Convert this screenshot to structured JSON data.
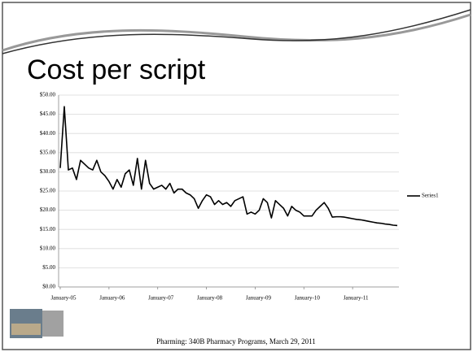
{
  "chart_data": {
    "type": "line",
    "title": "Cost per script",
    "categories": [
      "January-05",
      null,
      null,
      null,
      null,
      null,
      null,
      null,
      null,
      null,
      null,
      null,
      "January-06",
      null,
      null,
      null,
      null,
      null,
      null,
      null,
      null,
      null,
      null,
      null,
      "January-07",
      null,
      null,
      null,
      null,
      null,
      null,
      null,
      null,
      null,
      null,
      null,
      "January-08",
      null,
      null,
      null,
      null,
      null,
      null,
      null,
      null,
      null,
      null,
      null,
      "January-09",
      null,
      null,
      null,
      null,
      null,
      null,
      null,
      null,
      null,
      null,
      null,
      "January-10",
      null,
      null,
      null,
      null,
      null,
      null,
      null,
      null,
      null,
      null,
      null,
      "January-11",
      null,
      null,
      null,
      null,
      null,
      null,
      null,
      null,
      null,
      null,
      null
    ],
    "series": [
      {
        "name": "Series1",
        "color": "#000000",
        "values": [
          31,
          47,
          30.5,
          31,
          28,
          33,
          32,
          31,
          30.5,
          33,
          30,
          29,
          27.5,
          25.5,
          28,
          26,
          29.5,
          30.5,
          26.5,
          33.5,
          25.5,
          33,
          27,
          25.5,
          26,
          26.5,
          25.5,
          27,
          24.5,
          25.5,
          25.5,
          24.5,
          24,
          23,
          20.5,
          22.5,
          24,
          23.5,
          21.5,
          22.5,
          21.5,
          22,
          21,
          22.5,
          23,
          23.5,
          19,
          19.5,
          19,
          20,
          23,
          22,
          18,
          22.5,
          21.5,
          20.5,
          18.5,
          21,
          20,
          19.5,
          18.5,
          18.5,
          18.5,
          20,
          21,
          22,
          20.5,
          18.2,
          18.3,
          18.3,
          18.2,
          18,
          17.8,
          17.6,
          17.5,
          17.3,
          17.1,
          16.9,
          16.7,
          16.6,
          16.4,
          16.3,
          16.1,
          16
        ]
      }
    ],
    "ylim": [
      0,
      50
    ],
    "yticks": [
      {
        "value": 0,
        "label": "$0.00"
      },
      {
        "value": 5,
        "label": "$5.00"
      },
      {
        "value": 10,
        "label": "$10.00"
      },
      {
        "value": 15,
        "label": "$15.00"
      },
      {
        "value": 20,
        "label": "$20.00"
      },
      {
        "value": 25,
        "label": "$25.00"
      },
      {
        "value": 30,
        "label": "$30.00"
      },
      {
        "value": 35,
        "label": "$35.00"
      },
      {
        "value": 40,
        "label": "$40.00"
      },
      {
        "value": 45,
        "label": "$45.00"
      },
      {
        "value": 50,
        "label": "$50.00"
      }
    ],
    "grid": true,
    "legend": "right"
  },
  "footer": "Pharming: 340B Pharmacy Programs, March 29, 2011"
}
